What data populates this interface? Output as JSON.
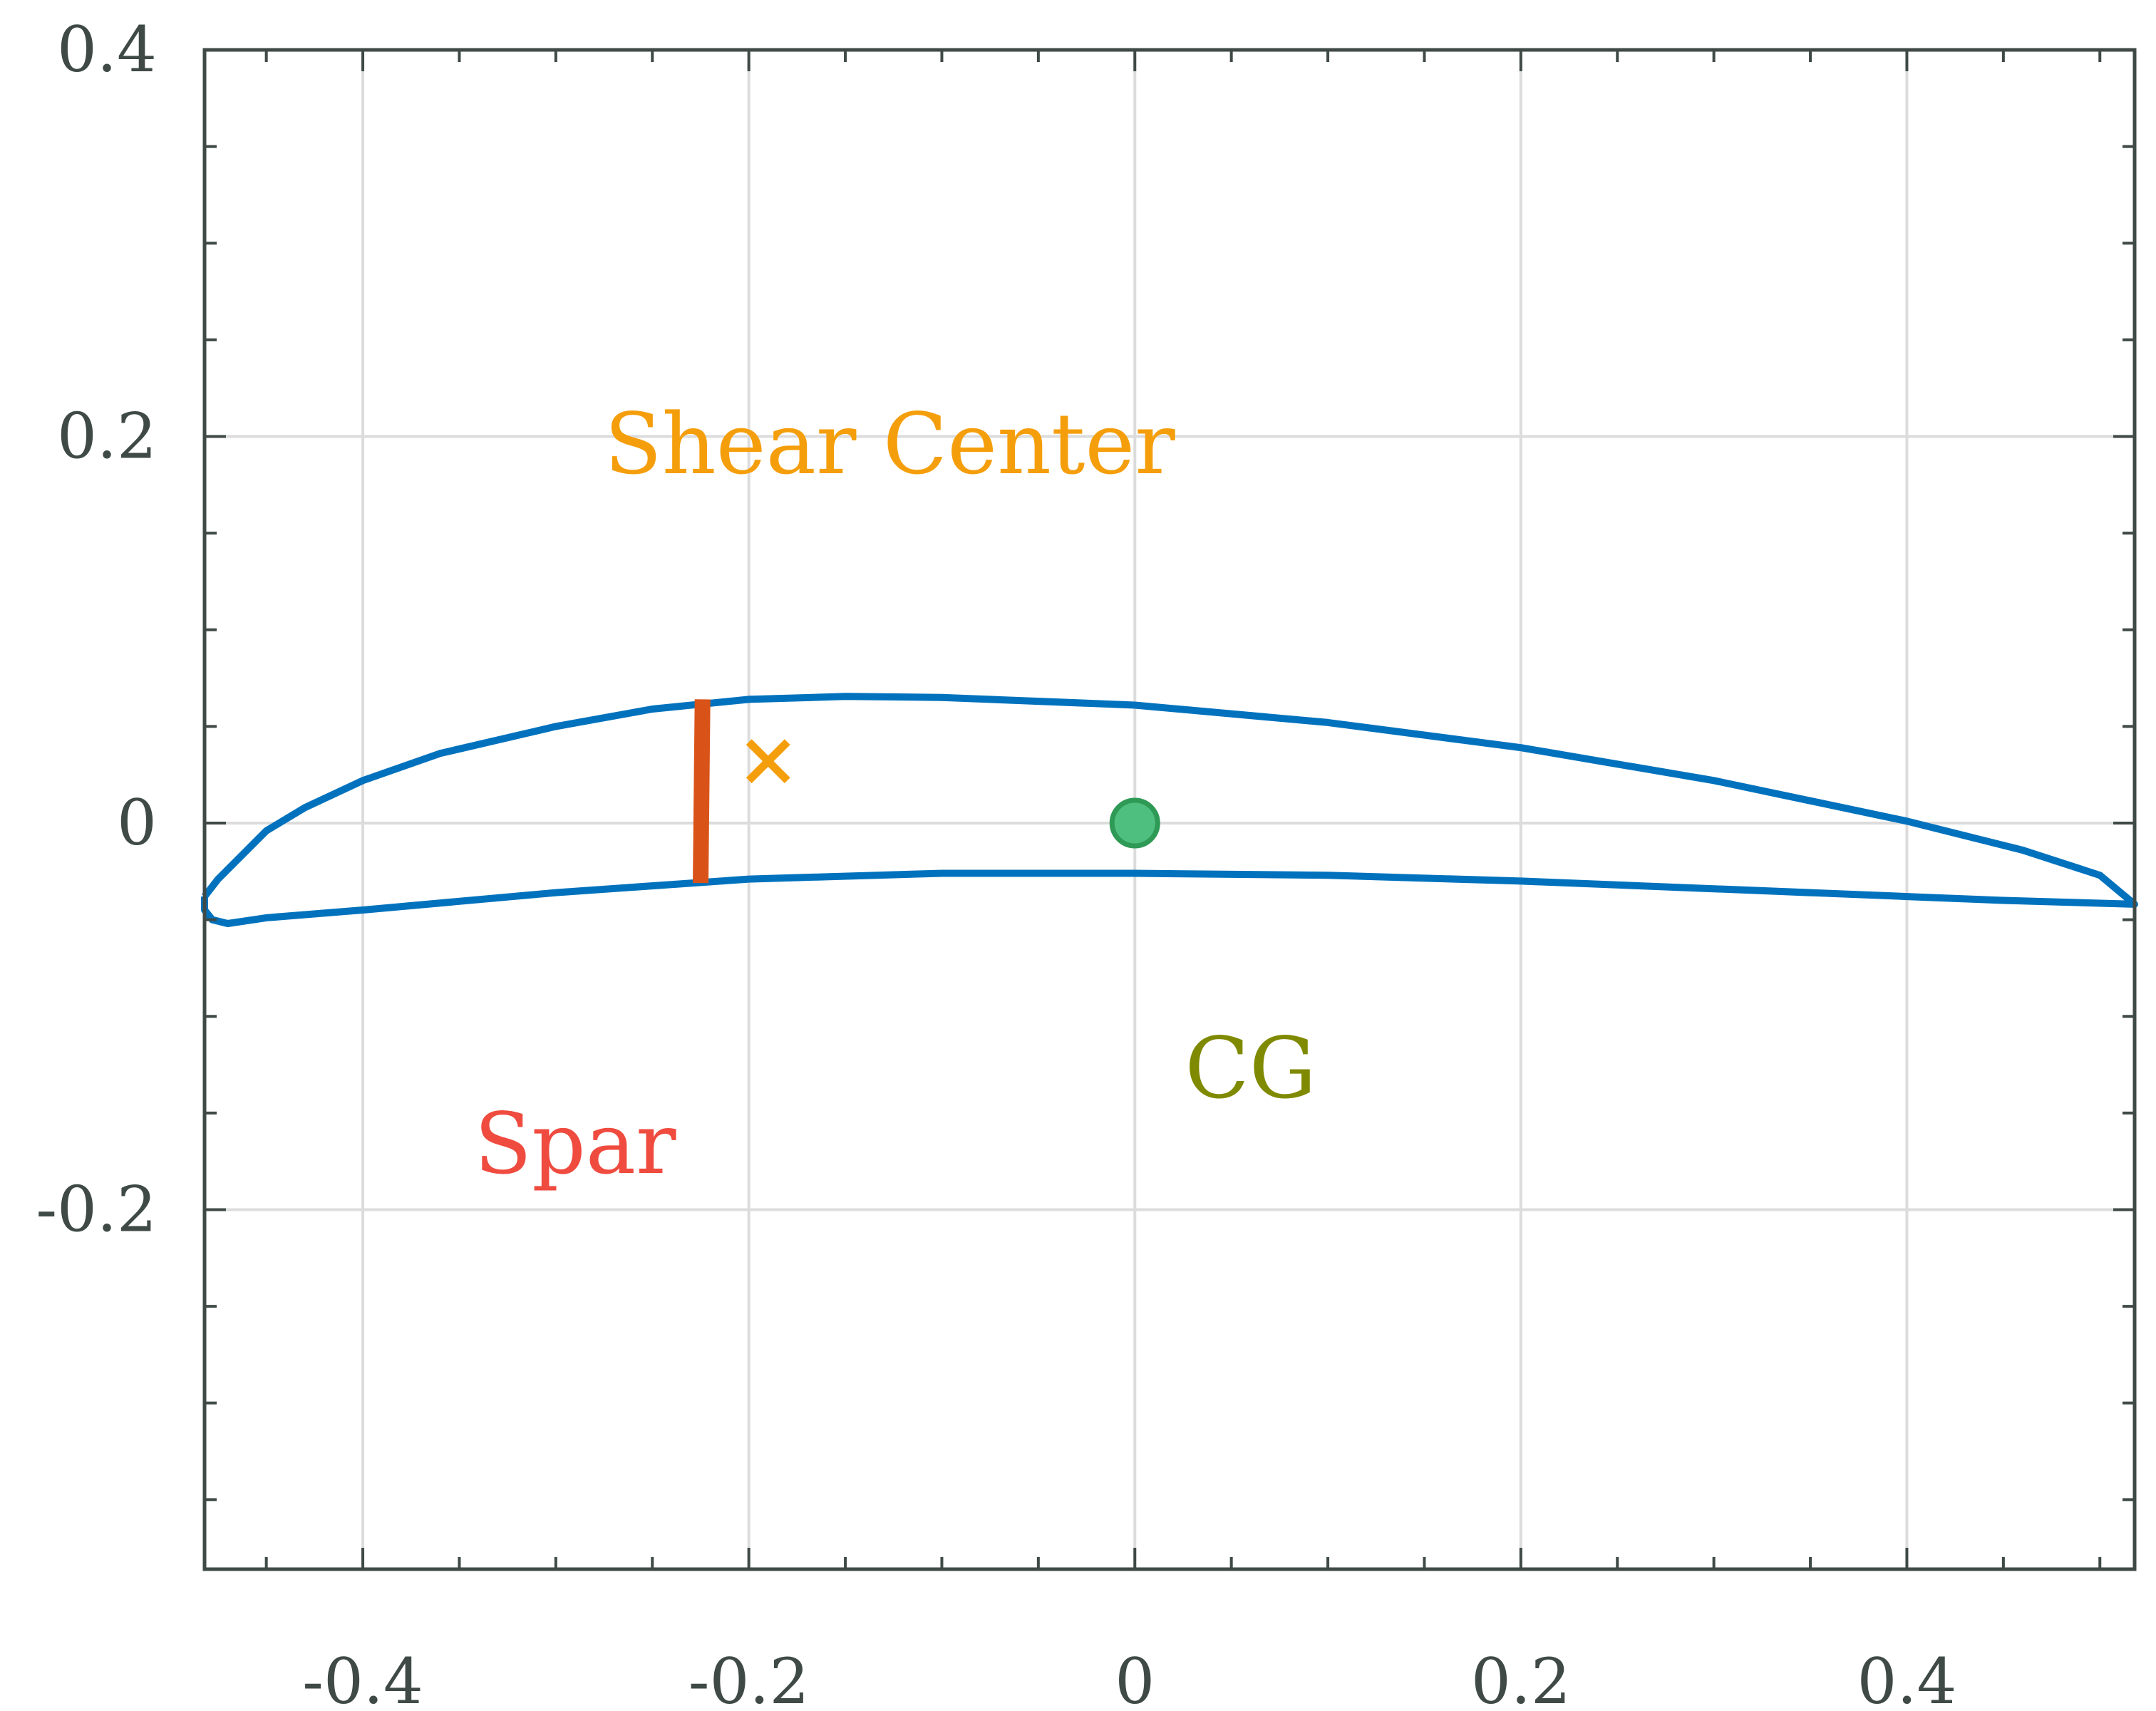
{
  "chart_data": {
    "type": "line",
    "title": "",
    "xlabel": "",
    "ylabel": "",
    "xlim": [
      -0.482,
      0.518
    ],
    "ylim": [
      -0.386,
      0.4
    ],
    "grid": true,
    "x_ticks": [
      -0.4,
      -0.2,
      0,
      0.2,
      0.4
    ],
    "x_tick_labels": [
      "-0.4",
      "-0.2",
      "0",
      "0.2",
      "0.4"
    ],
    "y_ticks": [
      0.4,
      0.2,
      0,
      -0.2
    ],
    "y_tick_labels": [
      "0.4",
      "0.2",
      "0",
      "-0.2"
    ],
    "series": [
      {
        "role": "airfoil",
        "color": "#0072bd",
        "points": [
          [
            -0.482,
            -0.038
          ],
          [
            -0.475,
            -0.029
          ],
          [
            -0.462,
            -0.016
          ],
          [
            -0.45,
            -0.004
          ],
          [
            -0.43,
            0.008
          ],
          [
            -0.4,
            0.022
          ],
          [
            -0.36,
            0.036
          ],
          [
            -0.3,
            0.05
          ],
          [
            -0.25,
            0.059
          ],
          [
            -0.2,
            0.064
          ],
          [
            -0.15,
            0.0655
          ],
          [
            -0.1,
            0.065
          ],
          [
            0,
            0.061
          ],
          [
            0.1,
            0.052
          ],
          [
            0.2,
            0.039
          ],
          [
            0.3,
            0.022
          ],
          [
            0.4,
            0.001
          ],
          [
            0.46,
            -0.014
          ],
          [
            0.5,
            -0.027
          ],
          [
            0.518,
            -0.042
          ],
          [
            0.45,
            -0.04
          ],
          [
            0.4,
            -0.038
          ],
          [
            0.3,
            -0.034
          ],
          [
            0.2,
            -0.03
          ],
          [
            0.1,
            -0.027
          ],
          [
            0,
            -0.026
          ],
          [
            -0.1,
            -0.026
          ],
          [
            -0.2,
            -0.029
          ],
          [
            -0.3,
            -0.036
          ],
          [
            -0.4,
            -0.045
          ],
          [
            -0.45,
            -0.049
          ],
          [
            -0.47,
            -0.052
          ],
          [
            -0.478,
            -0.05
          ],
          [
            -0.482,
            -0.045
          ],
          [
            -0.482,
            -0.038
          ]
        ]
      },
      {
        "role": "spar",
        "color": "#d95319",
        "points": [
          [
            -0.224,
            0.064
          ],
          [
            -0.225,
            -0.031
          ]
        ]
      }
    ],
    "markers": [
      {
        "name": "shear-center",
        "shape": "x",
        "color": "#f59e0b",
        "x": -0.19,
        "y": 0.032
      },
      {
        "name": "cg",
        "shape": "circle",
        "color": "#4fbf7f",
        "edge_color": "#2e9a55",
        "x": 0,
        "y": 0
      }
    ],
    "annotations": [
      {
        "text": "Shear Center",
        "color": "#f59e0b",
        "x": -0.127,
        "y": 0.181
      },
      {
        "text": "Spar",
        "color": "#ef4b3f",
        "x": -0.29,
        "y": -0.181
      },
      {
        "text": "CG",
        "color": "#7f8a00",
        "x": 0.06,
        "y": -0.142
      }
    ]
  }
}
